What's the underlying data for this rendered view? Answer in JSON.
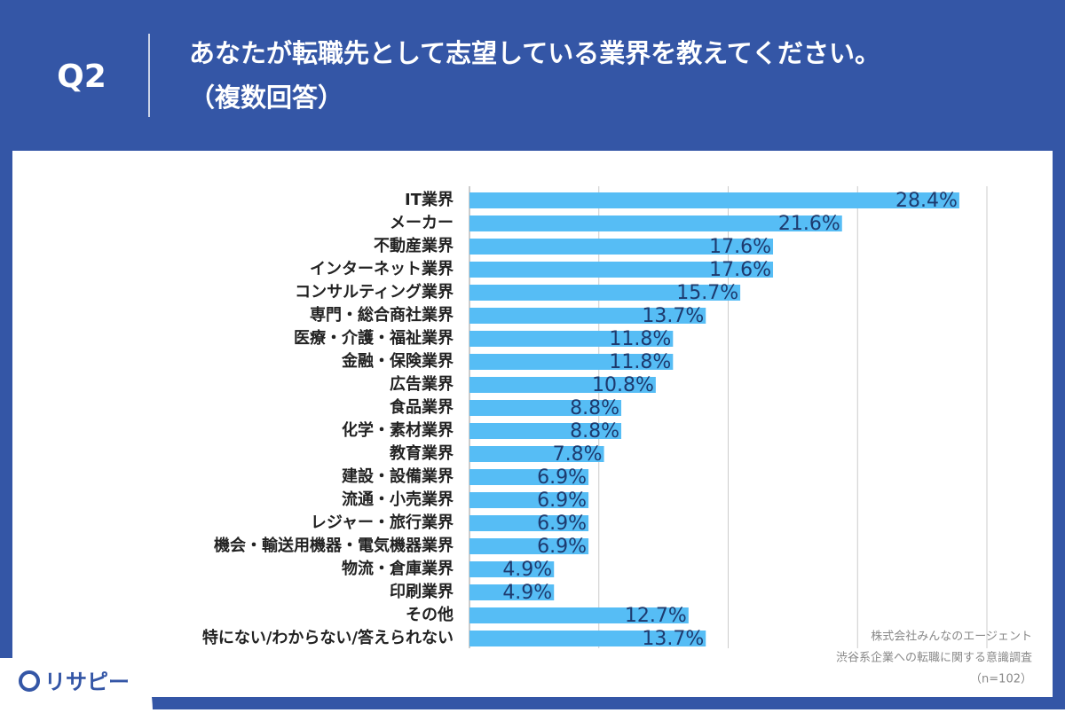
{
  "header": {
    "question": "Q2",
    "title_line1": "あなたが転職先として志望している業界を教えてください。",
    "title_line2": "（複数回答）"
  },
  "chart_data": {
    "type": "bar",
    "orientation": "horizontal",
    "categories": [
      "IT業界",
      "メーカー",
      "不動産業界",
      "インターネット業界",
      "コンサルティング業界",
      "専門・総合商社業界",
      "医療・介護・福祉業界",
      "金融・保険業界",
      "広告業界",
      "食品業界",
      "化学・素材業界",
      "教育業界",
      "建設・設備業界",
      "流通・小売業界",
      "レジャー・旅行業界",
      "機会・輸送用機器・電気機器業界",
      "物流・倉庫業界",
      "印刷業界",
      "その他",
      "特にない/わからない/答えられない"
    ],
    "values": [
      28.4,
      21.6,
      17.6,
      17.6,
      15.7,
      13.7,
      11.8,
      11.8,
      10.8,
      8.8,
      8.8,
      7.8,
      6.9,
      6.9,
      6.9,
      6.9,
      4.9,
      4.9,
      12.7,
      13.7
    ],
    "value_labels": [
      "28.4%",
      "21.6%",
      "17.6%",
      "17.6%",
      "15.7%",
      "13.7%",
      "11.8%",
      "11.8%",
      "10.8%",
      "8.8%",
      "8.8%",
      "7.8%",
      "6.9%",
      "6.9%",
      "6.9%",
      "6.9%",
      "4.9%",
      "4.9%",
      "12.7%",
      "13.7%"
    ],
    "color": "#56bdf5",
    "xlim": [
      0,
      30
    ],
    "xticks": [
      0,
      7.5,
      15,
      22.5,
      30
    ],
    "grid": true,
    "source": [
      "株式会社みんなのエージェント",
      "渋谷系企業への転職に関する意識調査",
      "（n=102）"
    ]
  },
  "logo": "リサピー"
}
